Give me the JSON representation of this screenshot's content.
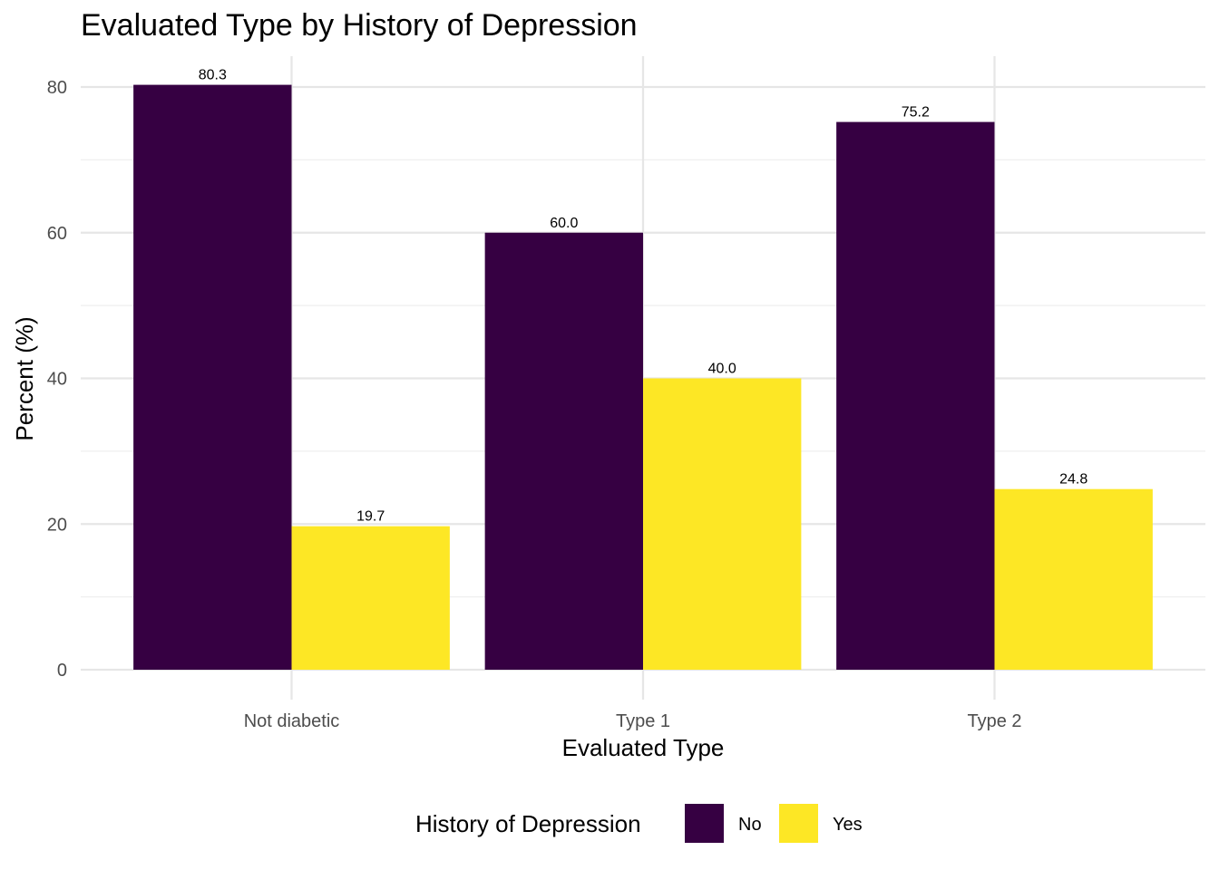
{
  "chart_data": {
    "type": "bar",
    "title": "Evaluated Type by History of Depression",
    "xlabel": "Evaluated Type",
    "ylabel": "Percent (%)",
    "categories": [
      "Not diabetic",
      "Type 1",
      "Type 2"
    ],
    "series": [
      {
        "name": "No",
        "values": [
          80.3,
          60.0,
          75.2
        ],
        "labels": [
          "80.3",
          "60.0",
          "75.2"
        ],
        "color": "#360042"
      },
      {
        "name": "Yes",
        "values": [
          19.7,
          40.0,
          24.8
        ],
        "labels": [
          "19.7",
          "40.0",
          "24.8"
        ],
        "color": "#FDE725"
      }
    ],
    "ylim": [
      0,
      84.3
    ],
    "yticks": [
      0,
      20,
      40,
      60,
      80
    ],
    "grid": true,
    "legend": {
      "title": "History of Depression",
      "position": "bottom"
    }
  }
}
